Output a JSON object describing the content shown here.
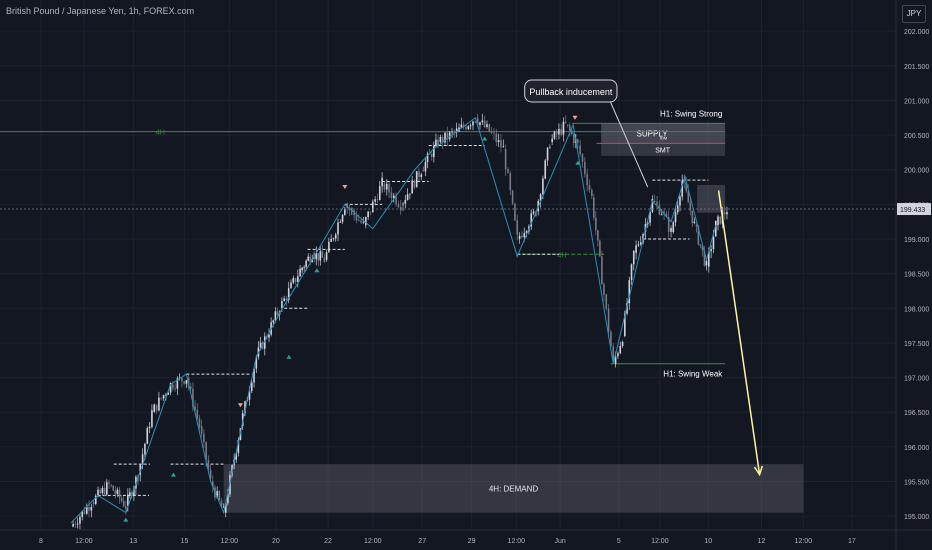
{
  "title": "British Pound / Japanese Yen, 1h, FOREX.com",
  "currency": "JPY",
  "chart_data": {
    "type": "candlestick",
    "yaxis": {
      "ticks": [
        202.0,
        201.5,
        201.0,
        200.5,
        200.0,
        199.5,
        199.0,
        198.5,
        198.0,
        197.5,
        197.0,
        196.5,
        196.0,
        195.5,
        195.0
      ],
      "labels": [
        "202.000",
        "201.500",
        "201.000",
        "200.500",
        "200.000",
        "199.500",
        "199.000",
        "198.500",
        "198.000",
        "197.500",
        "197.000",
        "196.500",
        "196.000",
        "195.500",
        "195.000"
      ],
      "range": [
        194.8,
        202.45
      ]
    },
    "xaxis": {
      "labels": [
        "8",
        "12:00",
        "13",
        "15",
        "12:00",
        "20",
        "22",
        "12:00",
        "27",
        "29",
        "12:00",
        "Jun",
        "5",
        "12:00",
        "10",
        "12",
        "12:00",
        "17"
      ],
      "label_frac": [
        0.044,
        0.09,
        0.143,
        0.198,
        0.246,
        0.296,
        0.352,
        0.4,
        0.453,
        0.506,
        0.554,
        0.601,
        0.664,
        0.708,
        0.76,
        0.817,
        0.862,
        0.914
      ]
    },
    "last_price": 199.433,
    "last_price_label": "199.433",
    "price_path": [
      [
        0.076,
        194.85
      ],
      [
        0.098,
        195.2
      ],
      [
        0.117,
        195.45
      ],
      [
        0.135,
        195.15
      ],
      [
        0.148,
        195.6
      ],
      [
        0.163,
        196.5
      ],
      [
        0.183,
        196.9
      ],
      [
        0.2,
        197.0
      ],
      [
        0.214,
        196.3
      ],
      [
        0.226,
        195.5
      ],
      [
        0.24,
        195.05
      ],
      [
        0.258,
        196.3
      ],
      [
        0.275,
        197.3
      ],
      [
        0.3,
        198.0
      ],
      [
        0.322,
        198.55
      ],
      [
        0.335,
        198.8
      ],
      [
        0.348,
        198.7
      ],
      [
        0.37,
        199.5
      ],
      [
        0.39,
        199.2
      ],
      [
        0.41,
        199.8
      ],
      [
        0.43,
        199.5
      ],
      [
        0.452,
        200.0
      ],
      [
        0.47,
        200.4
      ],
      [
        0.49,
        200.55
      ],
      [
        0.51,
        200.75
      ],
      [
        0.525,
        200.55
      ],
      [
        0.54,
        200.3
      ],
      [
        0.555,
        199.0
      ],
      [
        0.575,
        199.4
      ],
      [
        0.59,
        200.4
      ],
      [
        0.607,
        200.65
      ],
      [
        0.62,
        200.35
      ],
      [
        0.635,
        199.6
      ],
      [
        0.648,
        198.2
      ],
      [
        0.658,
        197.2
      ],
      [
        0.668,
        197.6
      ],
      [
        0.68,
        198.8
      ],
      [
        0.69,
        199.1
      ],
      [
        0.7,
        199.55
      ],
      [
        0.71,
        199.4
      ],
      [
        0.72,
        199.1
      ],
      [
        0.732,
        199.85
      ],
      [
        0.745,
        199.2
      ],
      [
        0.758,
        198.6
      ],
      [
        0.768,
        199.2
      ],
      [
        0.78,
        199.43
      ]
    ],
    "zigzag": [
      [
        0.076,
        194.9
      ],
      [
        0.105,
        195.3
      ],
      [
        0.135,
        195.05
      ],
      [
        0.148,
        195.55
      ],
      [
        0.183,
        196.9
      ],
      [
        0.2,
        197.05
      ],
      [
        0.226,
        195.5
      ],
      [
        0.24,
        195.05
      ],
      [
        0.275,
        197.3
      ],
      [
        0.303,
        198.0
      ],
      [
        0.335,
        198.7
      ],
      [
        0.37,
        199.5
      ],
      [
        0.4,
        199.15
      ],
      [
        0.445,
        200.0
      ],
      [
        0.465,
        200.3
      ],
      [
        0.51,
        200.75
      ],
      [
        0.555,
        198.75
      ],
      [
        0.615,
        200.65
      ],
      [
        0.658,
        197.2
      ],
      [
        0.7,
        199.55
      ],
      [
        0.72,
        199.25
      ],
      [
        0.735,
        199.9
      ],
      [
        0.758,
        198.7
      ],
      [
        0.768,
        199.2
      ]
    ],
    "h4_line": {
      "label": "4H",
      "value": 200.55
    },
    "h4_line_2": {
      "label": "4H",
      "value": 198.78
    },
    "swing_strong": {
      "label": "H1: Swing Strong",
      "value": 200.67
    },
    "swing_weak": {
      "label": "H1: Swing Weak",
      "value": 197.2
    },
    "supply_zone": {
      "label": "SUPPLY",
      "low": 200.38,
      "high": 200.67
    },
    "idm_label": "IDM",
    "smt_zone": {
      "label": "SMT",
      "low": 200.2,
      "high": 200.38
    },
    "smt_red_line": 200.38,
    "small_zone": {
      "low": 199.38,
      "high": 199.78
    },
    "demand_zone": {
      "label": "4H: DEMAND",
      "low": 195.05,
      "high": 195.75
    },
    "annotation": {
      "text": "Pullback inducement"
    },
    "projection": {
      "from": [
        0.771,
        199.7
      ],
      "to": [
        0.815,
        195.6
      ]
    }
  }
}
